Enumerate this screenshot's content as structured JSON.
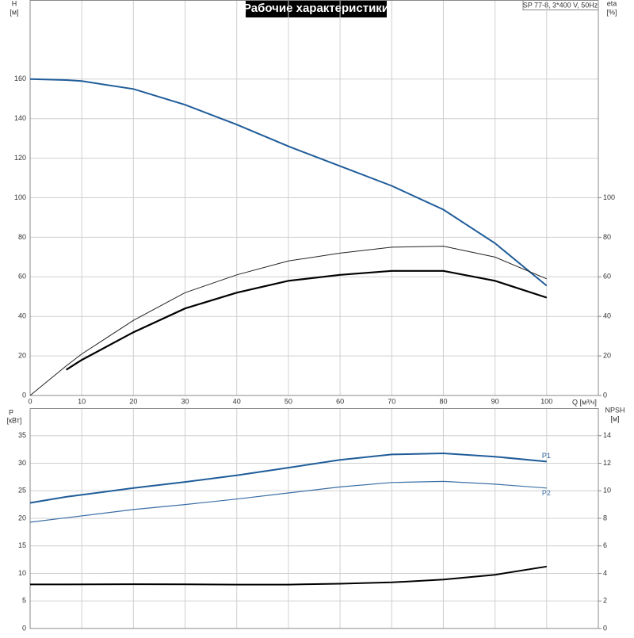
{
  "chart_data": [
    {
      "type": "line",
      "title": "Рабочие характеристики",
      "subtitle": "SP 77-8, 3*400 V, 50Hz",
      "y_label": "H",
      "y_unit": "[м]",
      "y2_label": "eta",
      "y2_unit": "[%]",
      "x_label": "Q [м³/ч]",
      "x": [
        0,
        7,
        10,
        20,
        30,
        40,
        50,
        60,
        70,
        80,
        90,
        100
      ],
      "series": [
        {
          "color": "#1f5c99",
          "values": [
            160,
            159.5,
            159,
            155,
            147,
            137,
            126,
            116,
            106,
            94,
            77,
            55.5
          ]
        },
        {
          "color": "#222222",
          "axis": "y2",
          "values": [
            0,
            15,
            21,
            38,
            52,
            61,
            68,
            72,
            75,
            75.5,
            70,
            59
          ]
        },
        {
          "color": "#000000",
          "axis": "y2",
          "values": [
            null,
            13,
            18,
            32,
            44,
            52,
            58,
            61,
            63,
            63,
            58,
            49.5
          ]
        }
      ],
      "xlim": [
        0,
        110
      ],
      "xticks": [
        0,
        10,
        20,
        30,
        40,
        50,
        60,
        70,
        80,
        90,
        100
      ],
      "ylim": [
        0,
        200
      ],
      "yticks": [
        0,
        20,
        40,
        60,
        80,
        100,
        120,
        140,
        160
      ],
      "y2lim": [
        0,
        200
      ],
      "y2ticks": [
        0,
        20,
        40,
        60,
        80,
        100
      ],
      "grid": true
    },
    {
      "type": "line",
      "y_label": "P",
      "y_unit": "[кВт]",
      "y2_label": "NPSH",
      "y2_unit": "[м]",
      "x": [
        0,
        7,
        20,
        30,
        40,
        50,
        60,
        70,
        80,
        90,
        100
      ],
      "series": [
        {
          "name": "P1",
          "color": "#1f5c99",
          "values": [
            22.8,
            23.9,
            25.5,
            26.6,
            27.8,
            29.2,
            30.6,
            31.6,
            31.8,
            31.2,
            30.3
          ]
        },
        {
          "name": "P2",
          "color": "#3a6ea5",
          "values": [
            19.3,
            20.1,
            21.6,
            22.5,
            23.5,
            24.6,
            25.7,
            26.5,
            26.7,
            26.2,
            25.5
          ]
        },
        {
          "color": "#000000",
          "axis": "y2",
          "values": [
            3.2,
            3.2,
            3.22,
            3.21,
            3.19,
            3.19,
            3.25,
            3.35,
            3.55,
            3.9,
            4.5
          ]
        }
      ],
      "xlim": [
        0,
        110
      ],
      "ylim": [
        0,
        40
      ],
      "yticks": [
        0,
        5,
        10,
        15,
        20,
        25,
        30,
        35
      ],
      "y2lim": [
        0,
        16
      ],
      "y2ticks": [
        0,
        2,
        4,
        6,
        8,
        10,
        12,
        14
      ],
      "grid": true
    }
  ]
}
